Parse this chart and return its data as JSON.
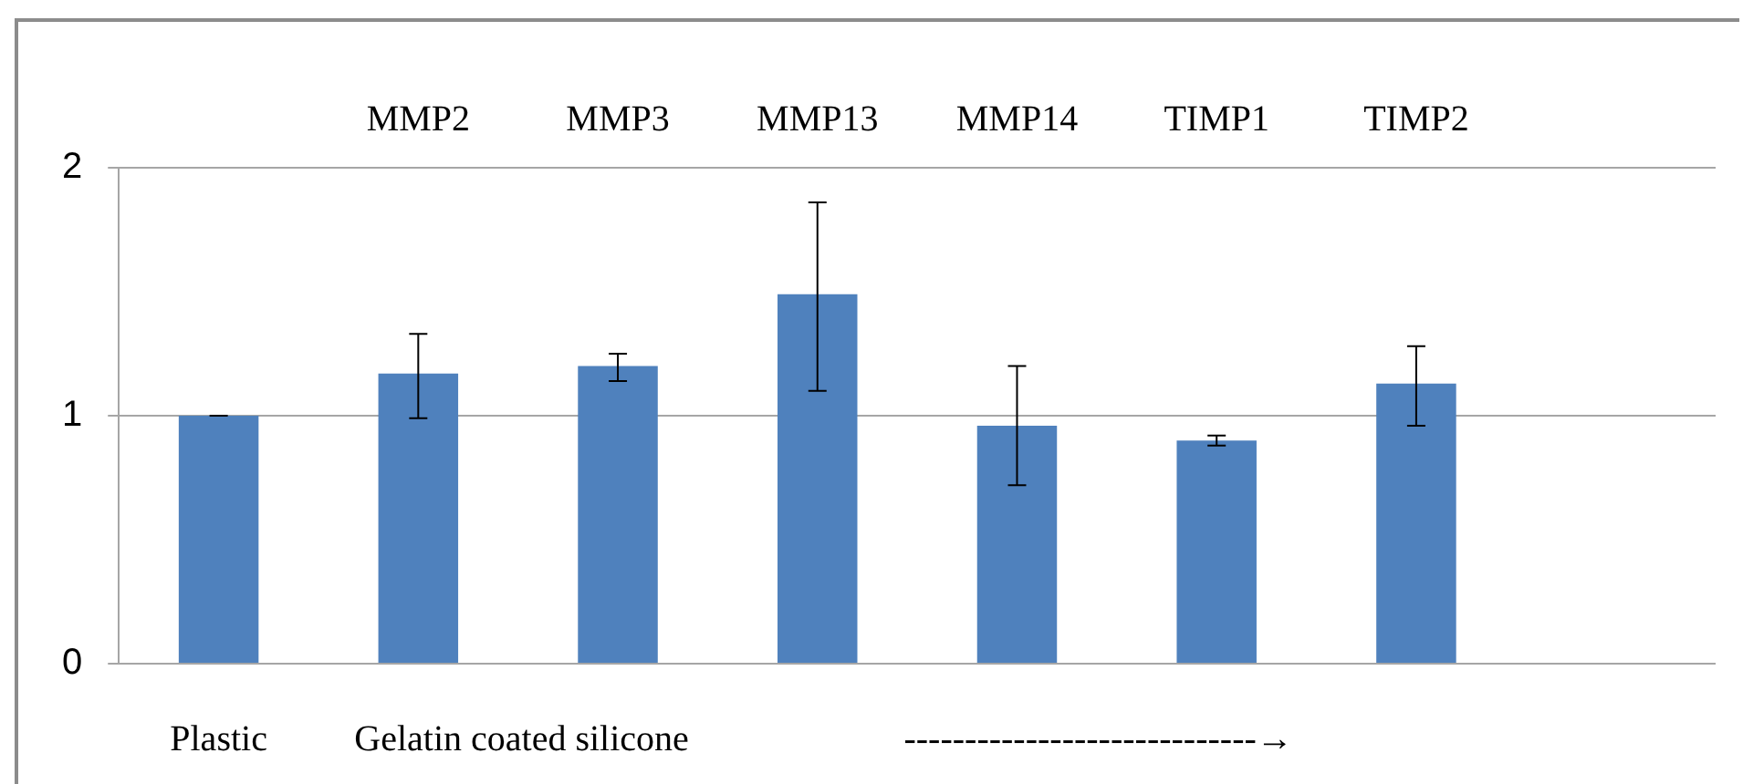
{
  "chart_data": {
    "type": "bar",
    "categories": [
      null,
      "MMP2",
      "MMP3",
      "MMP13",
      "MMP14",
      "TIMP1",
      "TIMP2",
      null
    ],
    "values": [
      1.0,
      1.17,
      1.2,
      1.49,
      0.96,
      0.9,
      1.13,
      null
    ],
    "errors": [
      [
        1.0,
        1.0
      ],
      [
        0.99,
        1.33
      ],
      [
        1.14,
        1.25
      ],
      [
        1.1,
        1.86
      ],
      [
        0.72,
        1.2
      ],
      [
        0.88,
        0.92
      ],
      [
        0.96,
        1.28
      ],
      null
    ],
    "color": "#4f81bd",
    "ylim": [
      0,
      2
    ],
    "yticks": [
      0,
      1,
      2
    ],
    "grid": "y",
    "legend": false,
    "annotations": [
      "Plastic",
      "Gelatin coated silicone",
      "-----------------------------→"
    ]
  }
}
